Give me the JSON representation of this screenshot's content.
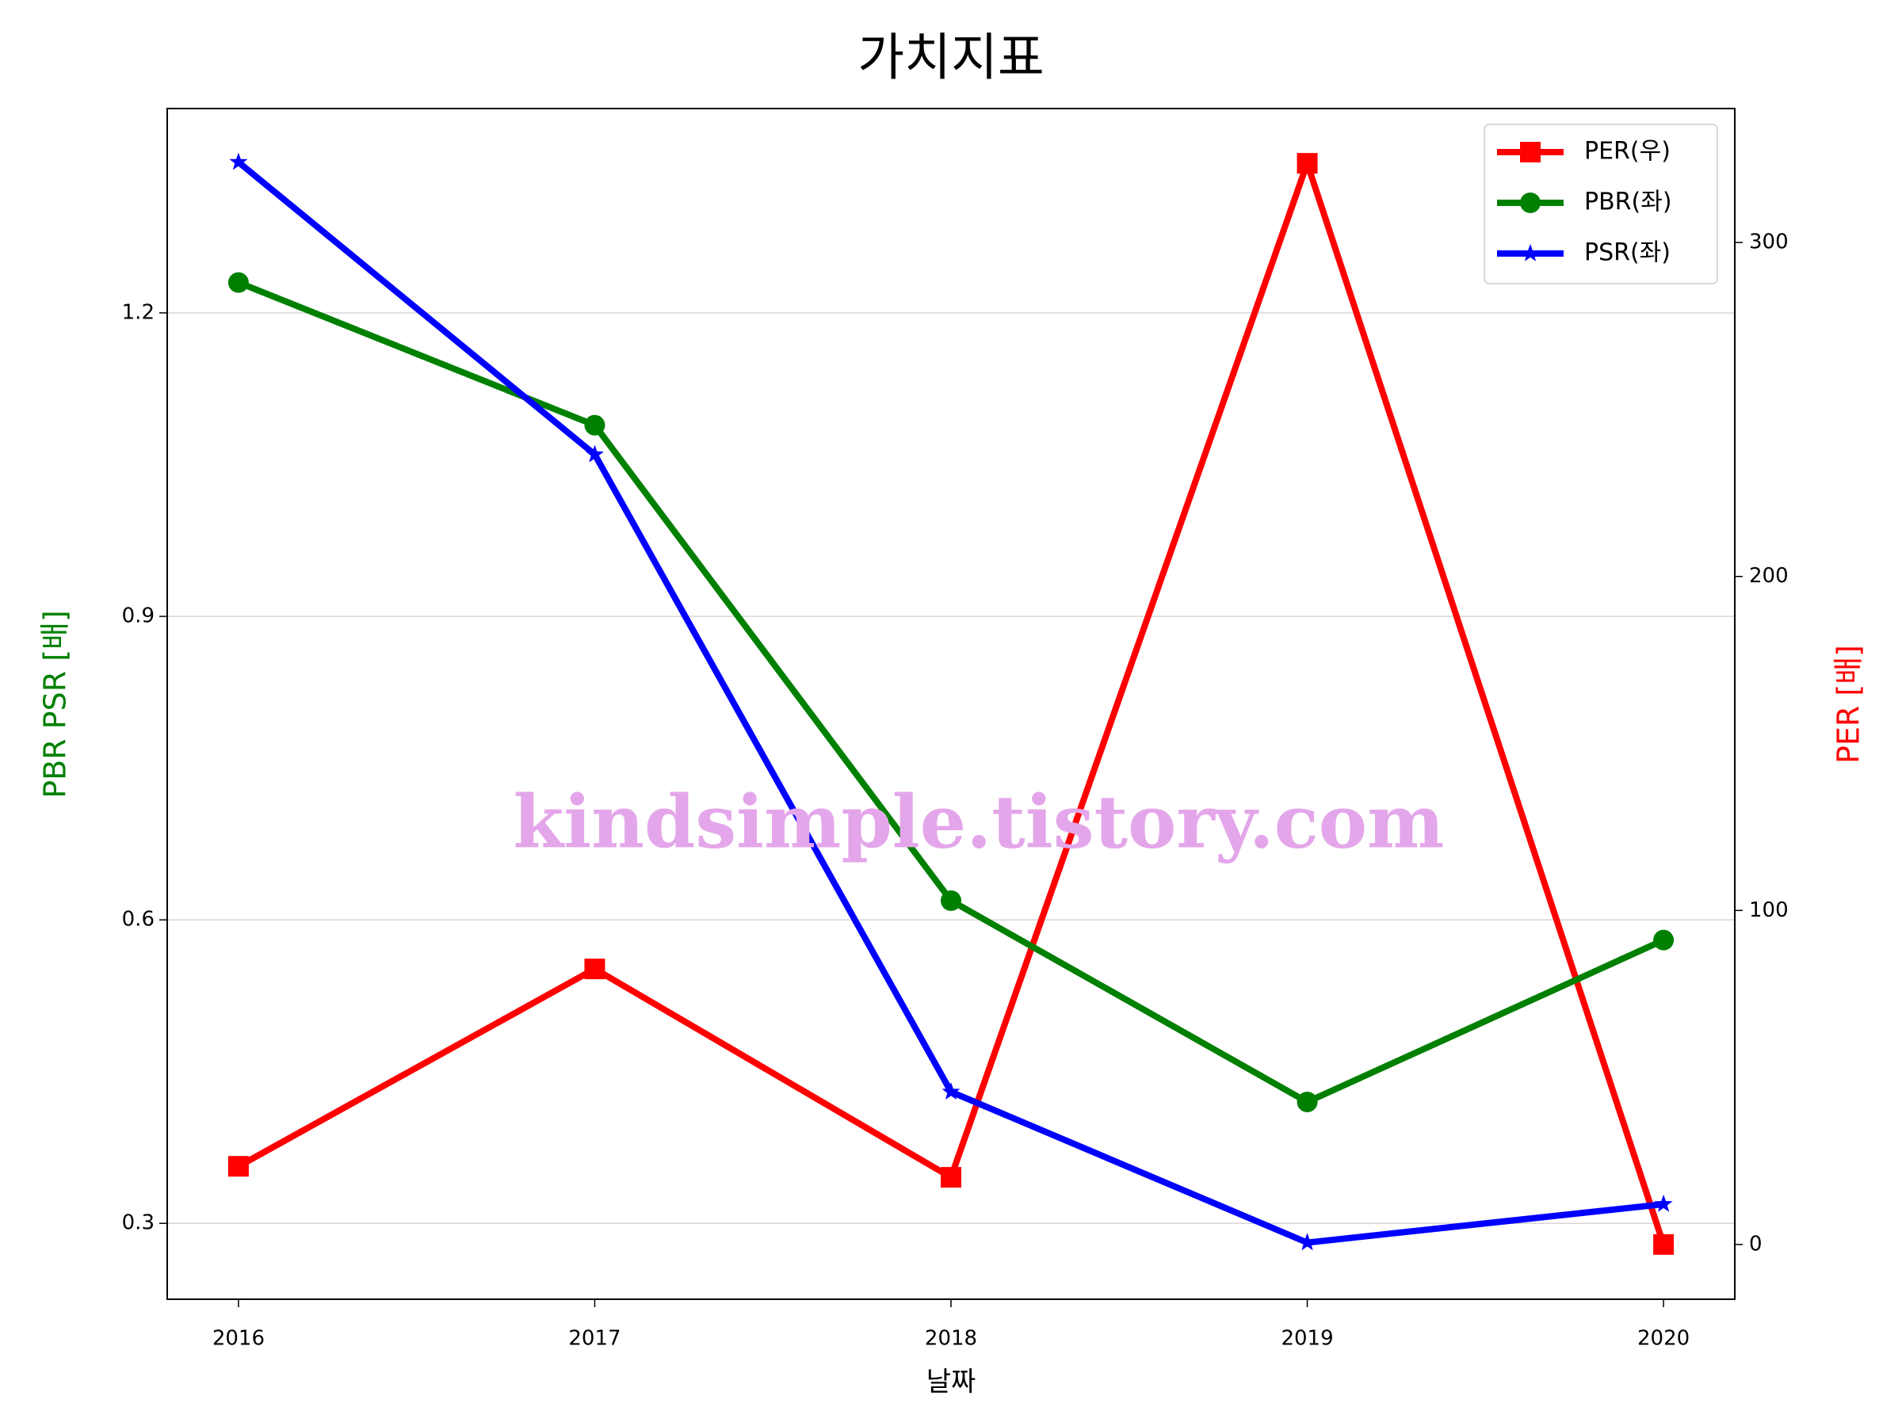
{
  "chart_data": {
    "type": "line",
    "title": "가치지표",
    "x_label": "날짜",
    "y_label": "PBR PSR [배]",
    "y2_label": "PER [배]",
    "categories": [
      "2016",
      "2017",
      "2018",
      "2019",
      "2020"
    ],
    "series": [
      {
        "name": "PER(우)",
        "color": "#ff0000",
        "marker": "square",
        "axis": "y2",
        "values": [
          23.4,
          82.5,
          20.1,
          323.7,
          0
        ]
      },
      {
        "name": "PBR(좌)",
        "color": "#008000",
        "marker": "circle",
        "values": [
          1.23,
          1.089,
          0.619,
          0.42,
          0.58
        ]
      },
      {
        "name": "PSR(좌)",
        "color": "#0000ff",
        "marker": "star",
        "values": [
          1.349,
          1.06,
          0.43,
          0.281,
          0.319
        ]
      }
    ],
    "ylim": [
      0.225,
      1.402
    ],
    "yticks": [
      0.3,
      0.6,
      0.9,
      1.2
    ],
    "y2lim": [
      -16.4,
      340.1
    ],
    "y2ticks": [
      0,
      100,
      200,
      300
    ],
    "grid": true,
    "legend": "upper right",
    "annotations": [
      {
        "text": "kindsimple.tistory.com",
        "color": "#e4a6ea"
      }
    ]
  }
}
